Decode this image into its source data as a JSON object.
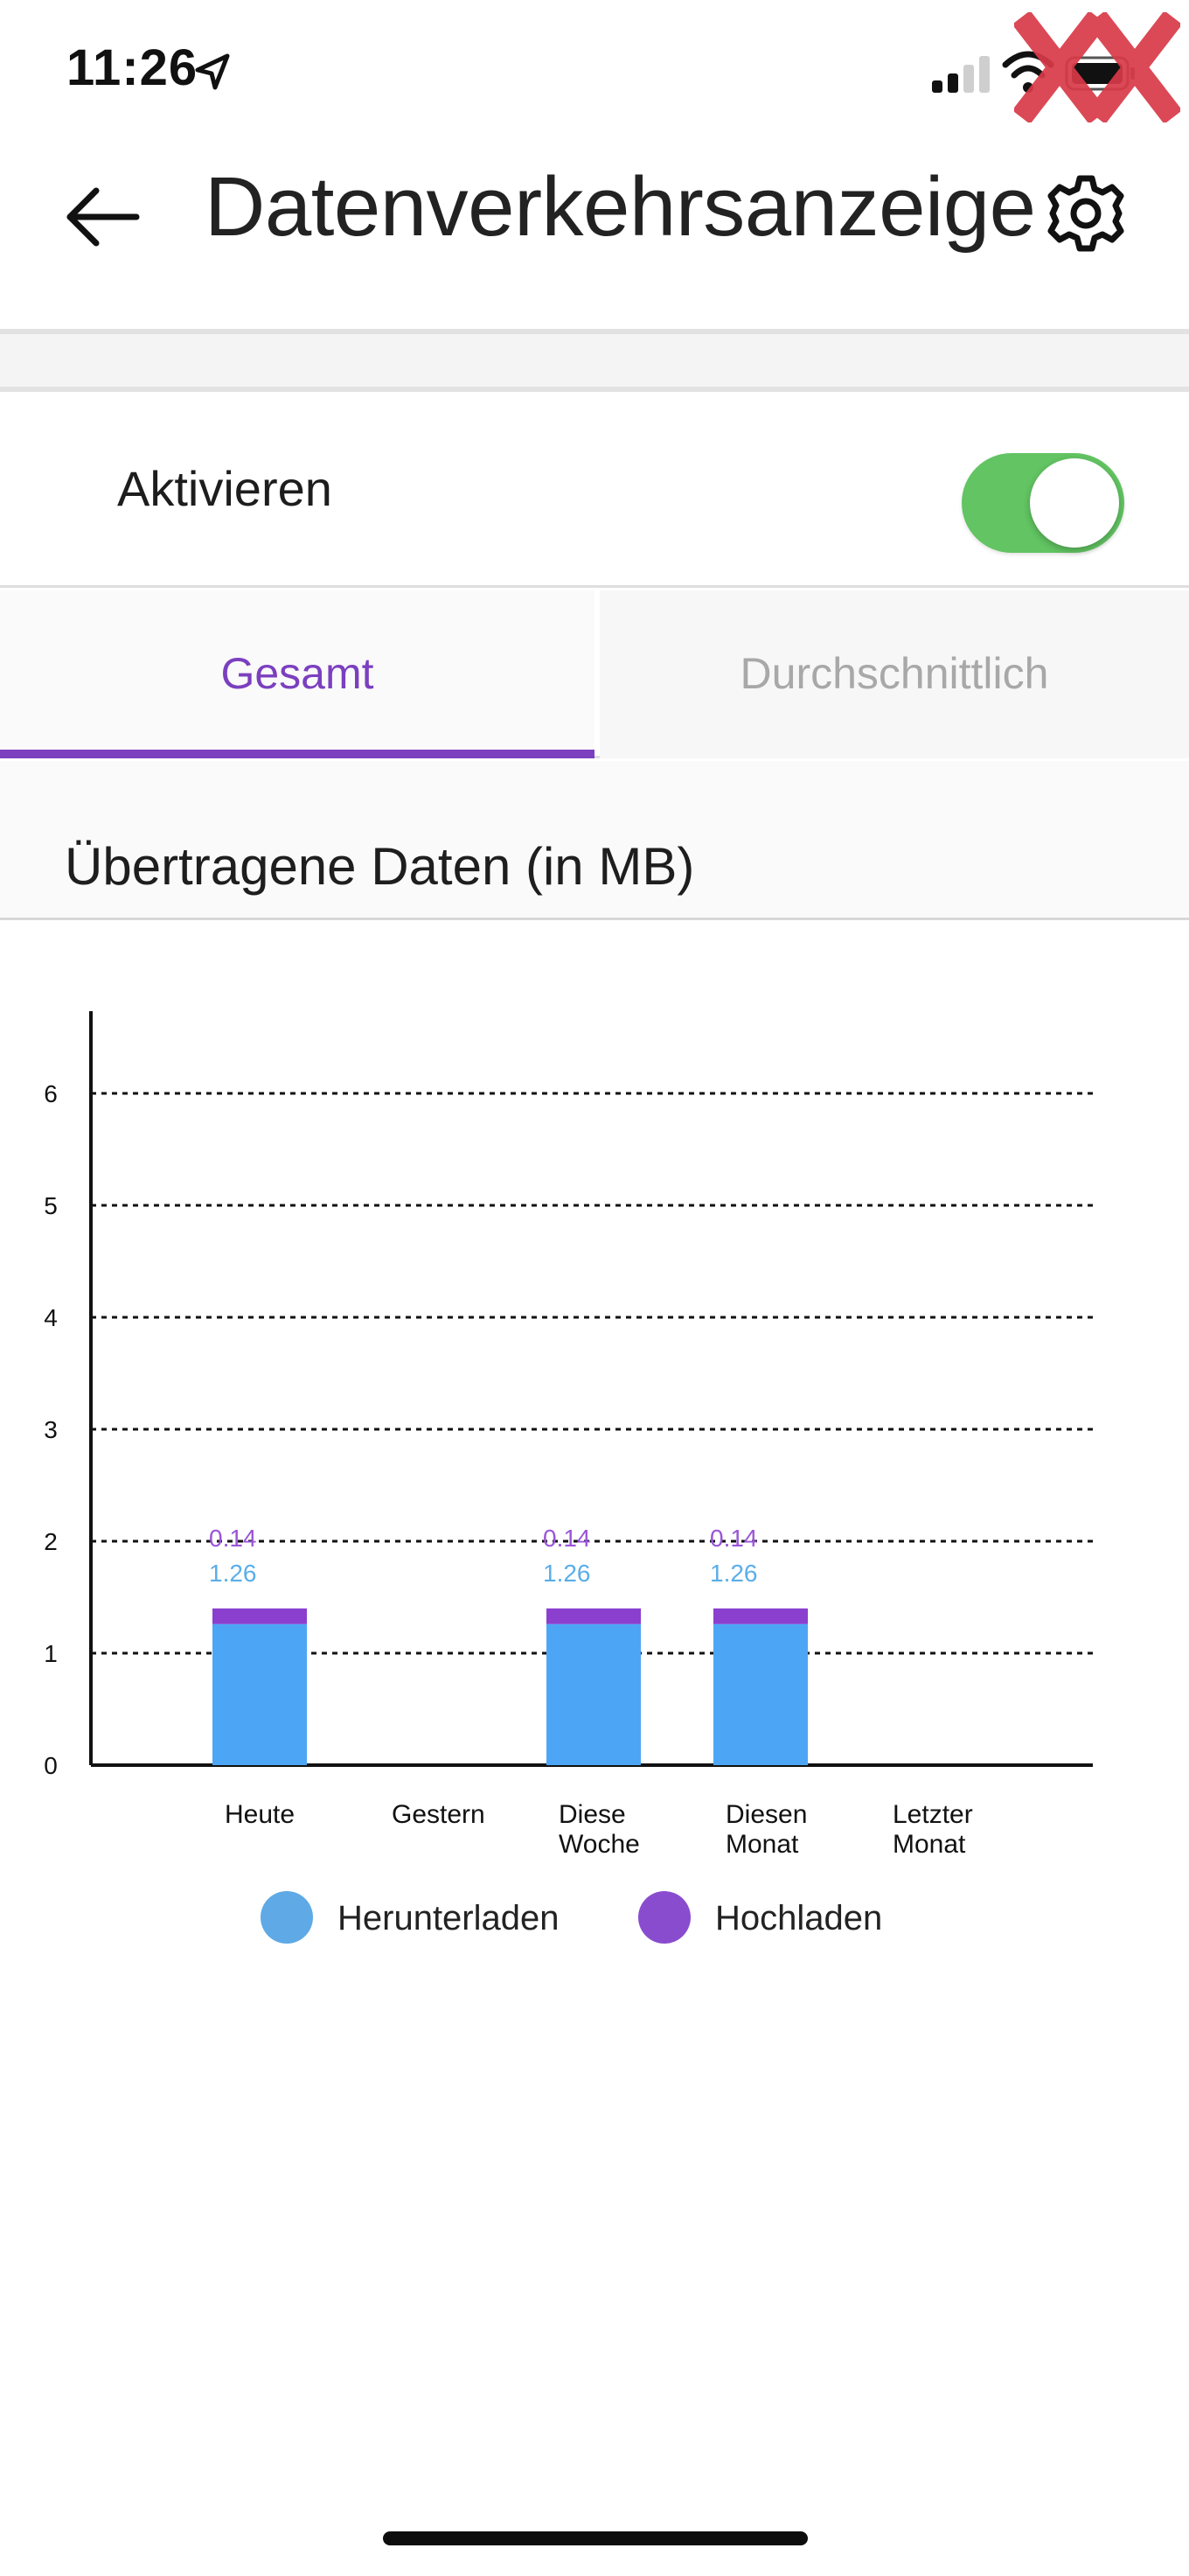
{
  "status_bar": {
    "time": "11:26",
    "icons": [
      "location-arrow-icon",
      "signal-icon",
      "wifi-icon",
      "battery-icon"
    ],
    "watermark": "XX"
  },
  "header": {
    "title": "Datenverkehrsanzeige",
    "back_icon": "arrow-left-icon",
    "settings_icon": "gear-icon"
  },
  "toggle_row": {
    "label": "Aktivieren",
    "enabled": true,
    "color_on": "#62c462"
  },
  "tabs": [
    {
      "label": "Gesamt",
      "active": true
    },
    {
      "label": "Durchschnittlich",
      "active": false
    }
  ],
  "accent_color": "#7b3fbf",
  "section": {
    "title": "Übertragene Daten (in MB)"
  },
  "chart_data": {
    "type": "bar",
    "stacked": true,
    "categories": [
      "Heute",
      "Gestern",
      "Diese Woche",
      "Diesen Monat",
      "Letzter Monat"
    ],
    "series": [
      {
        "name": "Herunterladen",
        "color": "#4da6f5",
        "label_color": "#5aaee8",
        "values": [
          1.26,
          0,
          1.26,
          1.26,
          0
        ]
      },
      {
        "name": "Hochladen",
        "color": "#8a3fcf",
        "label_color": "#9a55d8",
        "values": [
          0.14,
          0,
          0.14,
          0.14,
          0
        ]
      }
    ],
    "ylim": [
      0,
      6
    ],
    "yticks": [
      "0",
      "1",
      "2",
      "3",
      "4",
      "5",
      "6"
    ],
    "grid": true,
    "legend_position": "bottom",
    "legend_colors": [
      "#5ea9e6",
      "#8a4ccf"
    ]
  }
}
